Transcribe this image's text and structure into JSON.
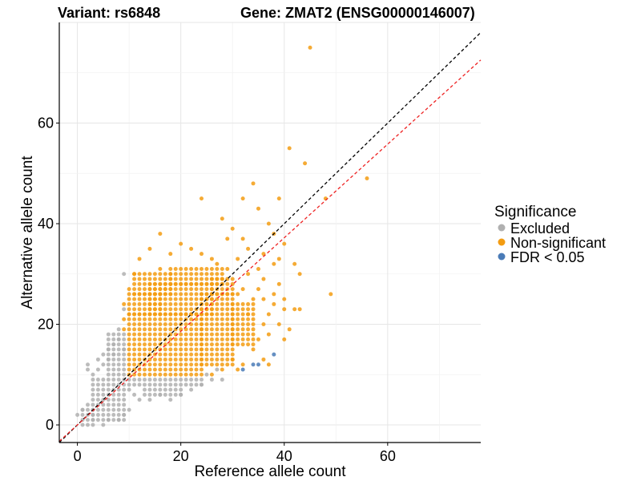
{
  "chart_data": {
    "type": "scatter",
    "title_left": "Variant: rs6848",
    "title_right": "Gene: ZMAT2 (ENSG00000146007)",
    "xlabel": "Reference allele count",
    "ylabel": "Alternative allele count",
    "xlim": [
      -3.5,
      78
    ],
    "ylim": [
      -3.5,
      80
    ],
    "xticks": [
      0,
      20,
      40,
      60
    ],
    "yticks": [
      0,
      20,
      40,
      60
    ],
    "grid": true,
    "legend": {
      "title": "Significance",
      "position": "right",
      "entries": [
        {
          "label": "Excluded",
          "color": "#b0b0b0"
        },
        {
          "label": "Non-significant",
          "color": "#f39c12"
        },
        {
          "label": "FDR < 0.05",
          "color": "#4a7bb7"
        }
      ]
    },
    "reference_lines": [
      {
        "name": "identity",
        "slope": 1.0,
        "intercept": 0,
        "color": "#000000",
        "dash": "dashed"
      },
      {
        "name": "fit",
        "slope": 0.93,
        "intercept": 0,
        "color": "#ee2222",
        "dash": "dashed"
      }
    ],
    "series": [
      {
        "name": "Excluded",
        "color": "#b0b0b0",
        "rects": [
          {
            "x": [
              3,
              9
            ],
            "y": [
              1,
              9
            ]
          },
          {
            "x": [
              10,
              24
            ],
            "y": [
              8,
              9
            ]
          },
          {
            "x": [
              6,
              9
            ],
            "y": [
              10,
              18
            ]
          },
          {
            "x": [
              1,
              3
            ],
            "y": [
              0,
              3
            ]
          },
          {
            "x": [
              13,
              20
            ],
            "y": [
              6,
              7
            ]
          }
        ],
        "points": [
          [
            0,
            2
          ],
          [
            1,
            3
          ],
          [
            2,
            4
          ],
          [
            2,
            11
          ],
          [
            2,
            12
          ],
          [
            3,
            10
          ],
          [
            4,
            11
          ],
          [
            4,
            13
          ],
          [
            5,
            12
          ],
          [
            5,
            14
          ],
          [
            6,
            13
          ],
          [
            6,
            15
          ],
          [
            7,
            14
          ],
          [
            7,
            16
          ],
          [
            8,
            17
          ],
          [
            8,
            19
          ],
          [
            9,
            15
          ],
          [
            9,
            30
          ],
          [
            9,
            23
          ],
          [
            10,
            7
          ],
          [
            11,
            6
          ],
          [
            12,
            5
          ],
          [
            14,
            5
          ],
          [
            16,
            6
          ],
          [
            18,
            5
          ],
          [
            20,
            6
          ],
          [
            22,
            7
          ],
          [
            24,
            8
          ],
          [
            25,
            10
          ],
          [
            26,
            9
          ],
          [
            27,
            11
          ],
          [
            28,
            9
          ],
          [
            5,
            0
          ],
          [
            6,
            1
          ],
          [
            8,
            1
          ],
          [
            9,
            2
          ],
          [
            10,
            3
          ]
        ]
      },
      {
        "name": "Non-significant",
        "color": "#f39c12",
        "rects": [
          {
            "x": [
              10,
              24
            ],
            "y": [
              10,
              22
            ]
          },
          {
            "x": [
              14,
              26
            ],
            "y": [
              22,
              28
            ]
          },
          {
            "x": [
              18,
              28
            ],
            "y": [
              28,
              31
            ]
          },
          {
            "x": [
              24,
              30
            ],
            "y": [
              12,
              26
            ]
          },
          {
            "x": [
              10,
              16
            ],
            "y": [
              22,
              26
            ]
          },
          {
            "x": [
              30,
              34
            ],
            "y": [
              16,
              24
            ]
          },
          {
            "x": [
              26,
              30
            ],
            "y": [
              26,
              29
            ]
          },
          {
            "x": [
              11,
              18
            ],
            "y": [
              26,
              30
            ]
          }
        ],
        "points": [
          [
            45,
            75
          ],
          [
            41,
            55
          ],
          [
            44,
            52
          ],
          [
            56,
            49
          ],
          [
            48,
            45
          ],
          [
            49,
            26
          ],
          [
            24,
            45
          ],
          [
            32,
            45
          ],
          [
            34,
            48
          ],
          [
            39,
            45
          ],
          [
            35,
            43
          ],
          [
            28,
            41
          ],
          [
            30,
            39
          ],
          [
            37,
            40
          ],
          [
            29,
            37
          ],
          [
            32,
            37
          ],
          [
            38,
            38
          ],
          [
            40,
            36
          ],
          [
            16,
            38
          ],
          [
            12,
            33
          ],
          [
            14,
            35
          ],
          [
            20,
            36
          ],
          [
            22,
            35
          ],
          [
            18,
            34
          ],
          [
            24,
            34
          ],
          [
            26,
            33
          ],
          [
            36,
            34
          ],
          [
            39,
            33
          ],
          [
            33,
            35
          ],
          [
            31,
            33
          ],
          [
            35,
            31
          ],
          [
            33,
            30
          ],
          [
            36,
            29
          ],
          [
            39,
            28
          ],
          [
            42,
            32
          ],
          [
            43,
            30
          ],
          [
            38,
            32
          ],
          [
            35,
            27
          ],
          [
            32,
            27
          ],
          [
            34,
            25
          ],
          [
            36,
            25
          ],
          [
            38,
            26
          ],
          [
            40,
            25
          ],
          [
            42,
            23
          ],
          [
            40,
            23
          ],
          [
            37,
            22
          ],
          [
            39,
            20
          ],
          [
            41,
            19
          ],
          [
            37,
            18
          ],
          [
            40,
            17
          ],
          [
            35,
            17
          ],
          [
            34,
            15
          ],
          [
            36,
            13
          ],
          [
            37,
            12
          ],
          [
            32,
            12
          ],
          [
            30,
            13
          ],
          [
            31,
            11
          ],
          [
            28,
            11
          ],
          [
            26,
            10
          ],
          [
            43,
            23
          ],
          [
            27,
            32
          ],
          [
            29,
            31
          ],
          [
            11,
            30
          ],
          [
            9,
            24
          ],
          [
            9,
            21
          ],
          [
            9,
            19
          ],
          [
            10,
            27
          ],
          [
            16,
            31
          ],
          [
            31,
            26
          ],
          [
            33,
            22
          ],
          [
            36,
            20
          ],
          [
            38,
            24
          ]
        ]
      },
      {
        "name": "FDR < 0.05",
        "color": "#4a7bb7",
        "rects": [],
        "points": [
          [
            32,
            11
          ],
          [
            34,
            12
          ],
          [
            35,
            12
          ],
          [
            38,
            14
          ]
        ]
      }
    ]
  }
}
